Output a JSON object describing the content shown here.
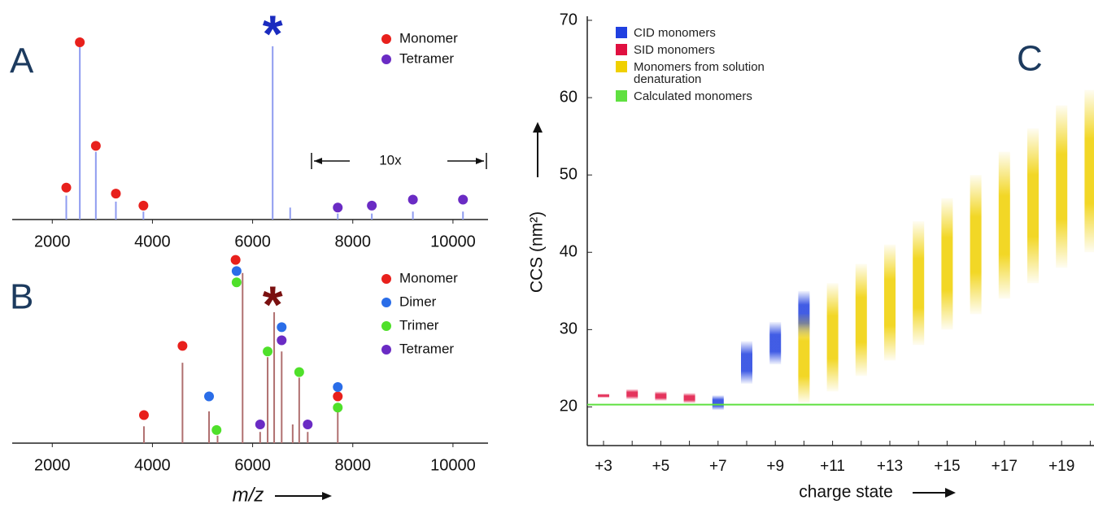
{
  "chart_data": [
    {
      "type": "spectrum",
      "label": "A",
      "xlim": [
        1200,
        10700
      ],
      "xticks": [
        2000,
        4000,
        6000,
        8000,
        10000
      ],
      "ylim": [
        0,
        100
      ],
      "peaks": {
        "color": "#8f9cf0",
        "x": [
          2280,
          2550,
          2870,
          3270,
          3820,
          6400,
          6750,
          7700,
          8380,
          9200,
          10200
        ],
        "values": [
          12,
          87,
          34,
          9,
          4,
          87,
          6,
          3,
          3,
          4,
          4
        ]
      },
      "series": [
        {
          "name": "Monomer",
          "color": "#e8201c",
          "x": [
            2280,
            2550,
            2870,
            3270,
            3820
          ],
          "values": [
            16,
            89,
            37,
            13,
            7
          ]
        },
        {
          "name": "Tetramer",
          "color": "#6a2bc4",
          "x": [
            7700,
            8380,
            9200,
            10200
          ],
          "values": [
            6,
            7,
            10,
            10
          ]
        }
      ],
      "annotations": [
        {
          "text": "*",
          "x": 6400,
          "y": 97,
          "color": "#1a2bbf"
        }
      ],
      "scale_note": {
        "text": "10x",
        "x": 8750
      }
    },
    {
      "type": "spectrum",
      "label": "B",
      "xlim": [
        1200,
        10700
      ],
      "xticks": [
        2000,
        4000,
        6000,
        8000,
        10000
      ],
      "ylim": [
        0,
        100
      ],
      "x_label": "m/z",
      "peaks": {
        "color": "#b07070",
        "x": [
          3830,
          4600,
          5130,
          5300,
          5800,
          6150,
          6300,
          6430,
          6580,
          6800,
          6930,
          7100,
          7700
        ],
        "values": [
          9,
          43,
          17,
          4,
          91,
          6,
          46,
          70,
          49,
          10,
          35,
          6,
          17
        ]
      },
      "series": [
        {
          "name": "Monomer",
          "color": "#e8201c",
          "x": [
            3830,
            4600,
            5660,
            7700
          ],
          "values": [
            15,
            52,
            98,
            25
          ]
        },
        {
          "name": "Dimer",
          "color": "#2a6de8",
          "x": [
            5130,
            5680,
            6580,
            7700
          ],
          "values": [
            25,
            92,
            62,
            30
          ]
        },
        {
          "name": "Trimer",
          "color": "#4fe02a",
          "x": [
            5280,
            5680,
            6300,
            6930,
            7700
          ],
          "values": [
            7,
            86,
            49,
            38,
            19
          ]
        },
        {
          "name": "Tetramer",
          "color": "#6a2bc4",
          "x": [
            6150,
            6580,
            7100
          ],
          "values": [
            10,
            55,
            10
          ]
        }
      ],
      "annotations": [
        {
          "text": "*",
          "x": 6400,
          "y": 78,
          "color": "#7a1010"
        }
      ]
    },
    {
      "type": "range-bar",
      "label": "C",
      "x_label": "charge state",
      "y_label": "CCS (nm²)",
      "categories": [
        "+3",
        null,
        "+5",
        null,
        "+7",
        null,
        "+9",
        null,
        "+11",
        null,
        "+13",
        null,
        "+15",
        null,
        "+17",
        null,
        "+19",
        null
      ],
      "ylim": [
        15,
        70
      ],
      "yticks": [
        20,
        30,
        40,
        50,
        60,
        70
      ],
      "series": [
        {
          "name": "CID monomers",
          "color": "#2040e0",
          "low": [
            null,
            null,
            null,
            null,
            19.6,
            23,
            25.5,
            29,
            null,
            null,
            null,
            null,
            null,
            null,
            null,
            null,
            null,
            null
          ],
          "high": [
            null,
            null,
            null,
            null,
            21.5,
            28.5,
            31,
            35,
            null,
            null,
            null,
            null,
            null,
            null,
            null,
            null,
            null,
            null
          ]
        },
        {
          "name": "SID monomers",
          "color": "#e01040",
          "low": [
            21.2,
            21,
            20.8,
            20.5,
            null,
            null,
            null,
            null,
            null,
            null,
            null,
            null,
            null,
            null,
            null,
            null,
            null,
            null
          ],
          "high": [
            21.7,
            22.3,
            22,
            21.8,
            null,
            null,
            null,
            null,
            null,
            null,
            null,
            null,
            null,
            null,
            null,
            null,
            null,
            null
          ]
        },
        {
          "name": "Monomers from solution denaturation",
          "color": "#f0d000",
          "low": [
            null,
            null,
            null,
            null,
            null,
            null,
            null,
            20.5,
            22,
            24,
            26,
            28,
            30,
            32,
            34,
            36,
            38,
            40
          ],
          "high": [
            null,
            null,
            null,
            null,
            null,
            null,
            null,
            32,
            36,
            38.5,
            41,
            44,
            47,
            50,
            53,
            56,
            59,
            61
          ]
        }
      ],
      "reference": {
        "name": "Calculated monomers",
        "color": "#5fe040",
        "value": 20.3
      }
    }
  ]
}
